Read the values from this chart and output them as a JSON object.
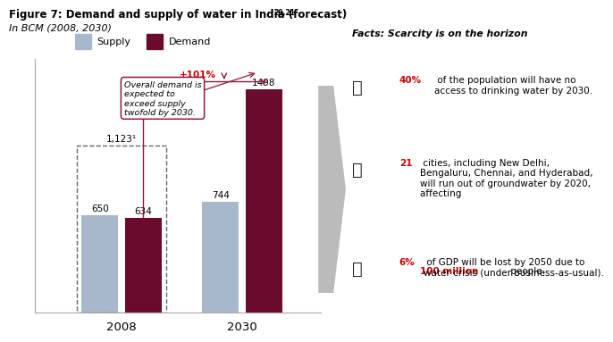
{
  "title": "Figure 7: Demand and supply of water in India (forecast)",
  "title_super": "20,21",
  "subtitle": "In BCM (2008, 2030)",
  "legend_supply": "Supply",
  "legend_demand": "Demand",
  "supply_color": "#a8b8cc",
  "demand_color": "#6b0a2e",
  "years": [
    "2008",
    "2030"
  ],
  "supply_values": [
    650,
    744
  ],
  "demand_values": [
    634,
    1498
  ],
  "dashed_box_value": "1,123¹",
  "annotation_callout": "Overall demand is\nexpected to\nexceed supply\ntwofold by 2030.",
  "annotation_pct": "+101%",
  "facts_title": "Facts: Scarcity is on the horizon",
  "fact1_highlight": "40%",
  "fact1_rest": " of the population will have no\naccess to drinking water by 2030.",
  "fact2_highlight": "21",
  "fact2_rest": " cities, including New Delhi,\nBengaluru, Chennai, and Hyderabad,\nwill run out of groundwater by 2020,\naffecting ",
  "fact2_highlight2": "100 million",
  "fact2_end": " people.",
  "fact3_highlight": "6%",
  "fact3_rest": " of GDP will be lost by 2050 due to\nwater crisis (under business-as-usual).",
  "highlight_color": "#cc0000",
  "background_color": "#ffffff",
  "arrow_color": "#8b1a3a",
  "callout_color": "#8b1a3a",
  "gray_arrow_color": "#b0b0b0"
}
